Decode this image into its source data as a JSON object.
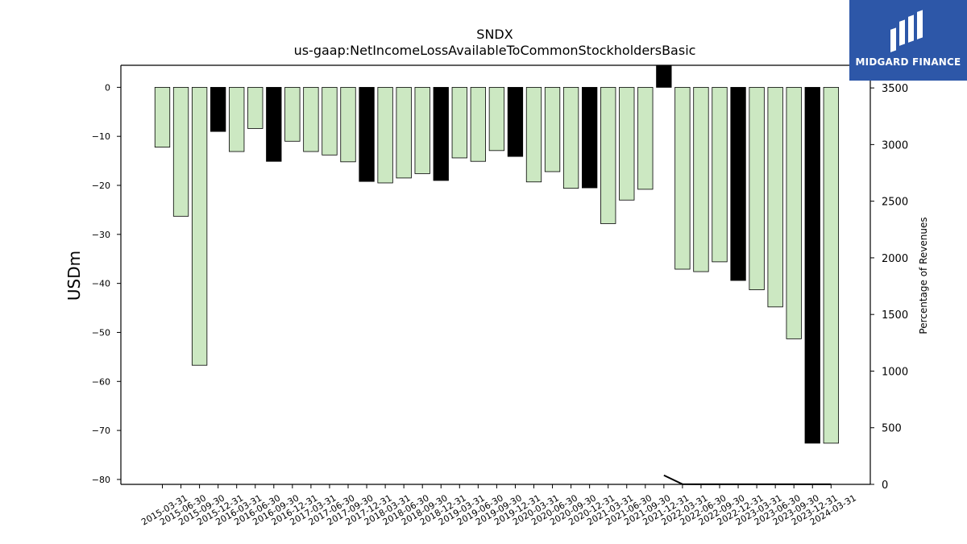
{
  "chart_data": {
    "type": "bar",
    "title": "SNDX",
    "subtitle": "us-gaap:NetIncomeLossAvailableToCommonStockholdersBasic",
    "ylabel": "USDm",
    "y2label": "Percentage of Revenues",
    "ylim": [
      -81,
      4.5
    ],
    "y2lim": [
      0,
      3700
    ],
    "yticks": [
      0,
      -10,
      -20,
      -30,
      -40,
      -50,
      -60,
      -70,
      -80
    ],
    "y2ticks": [
      0,
      500,
      1000,
      1500,
      2000,
      2500,
      3000,
      3500
    ],
    "categories": [
      "2015-03-31",
      "2015-06-30",
      "2015-09-30",
      "2015-12-31",
      "2016-03-31",
      "2016-06-30",
      "2016-09-30",
      "2016-12-31",
      "2017-03-31",
      "2017-06-30",
      "2017-09-30",
      "2017-12-31",
      "2018-03-31",
      "2018-06-30",
      "2018-09-30",
      "2018-12-31",
      "2019-03-31",
      "2019-06-30",
      "2019-09-30",
      "2019-12-31",
      "2020-03-31",
      "2020-06-30",
      "2020-09-30",
      "2020-12-31",
      "2021-03-31",
      "2021-06-30",
      "2021-09-30",
      "2021-12-31",
      "2022-03-31",
      "2022-06-30",
      "2022-09-30",
      "2022-12-31",
      "2023-03-31",
      "2023-06-30",
      "2023-09-30",
      "2023-12-31",
      "2024-03-31"
    ],
    "values": [
      -12.2,
      -26.3,
      -56.7,
      -9.0,
      -13.1,
      -8.4,
      -15.1,
      -11.0,
      -13.1,
      -13.8,
      -15.2,
      -19.2,
      -19.5,
      -18.5,
      -17.6,
      -19.0,
      -14.4,
      -15.1,
      -12.9,
      -14.1,
      -19.3,
      -17.2,
      -20.6,
      -20.5,
      -27.8,
      -23.0,
      -20.8,
      4.5,
      -37.1,
      -37.6,
      -35.6,
      -39.4,
      -41.3,
      -44.8,
      -51.3,
      -72.6,
      -72.6
    ],
    "highlight": [
      false,
      false,
      false,
      true,
      false,
      false,
      true,
      false,
      false,
      false,
      false,
      true,
      false,
      false,
      false,
      true,
      false,
      false,
      false,
      true,
      false,
      false,
      false,
      true,
      false,
      false,
      false,
      true,
      false,
      false,
      false,
      true,
      false,
      false,
      false,
      true,
      false
    ],
    "colors": {
      "bar": "#cce8c2",
      "highlight": "#000000",
      "line": "#000000"
    },
    "line_series": {
      "name": "Percentage of Revenues",
      "x_index": [
        27,
        28,
        29,
        30,
        31,
        32,
        33,
        34,
        35,
        36
      ],
      "values": [
        80,
        2,
        1,
        1,
        1,
        1,
        1,
        1,
        1,
        1
      ]
    }
  },
  "logo": {
    "text": "MIDGARD FINANCE"
  }
}
